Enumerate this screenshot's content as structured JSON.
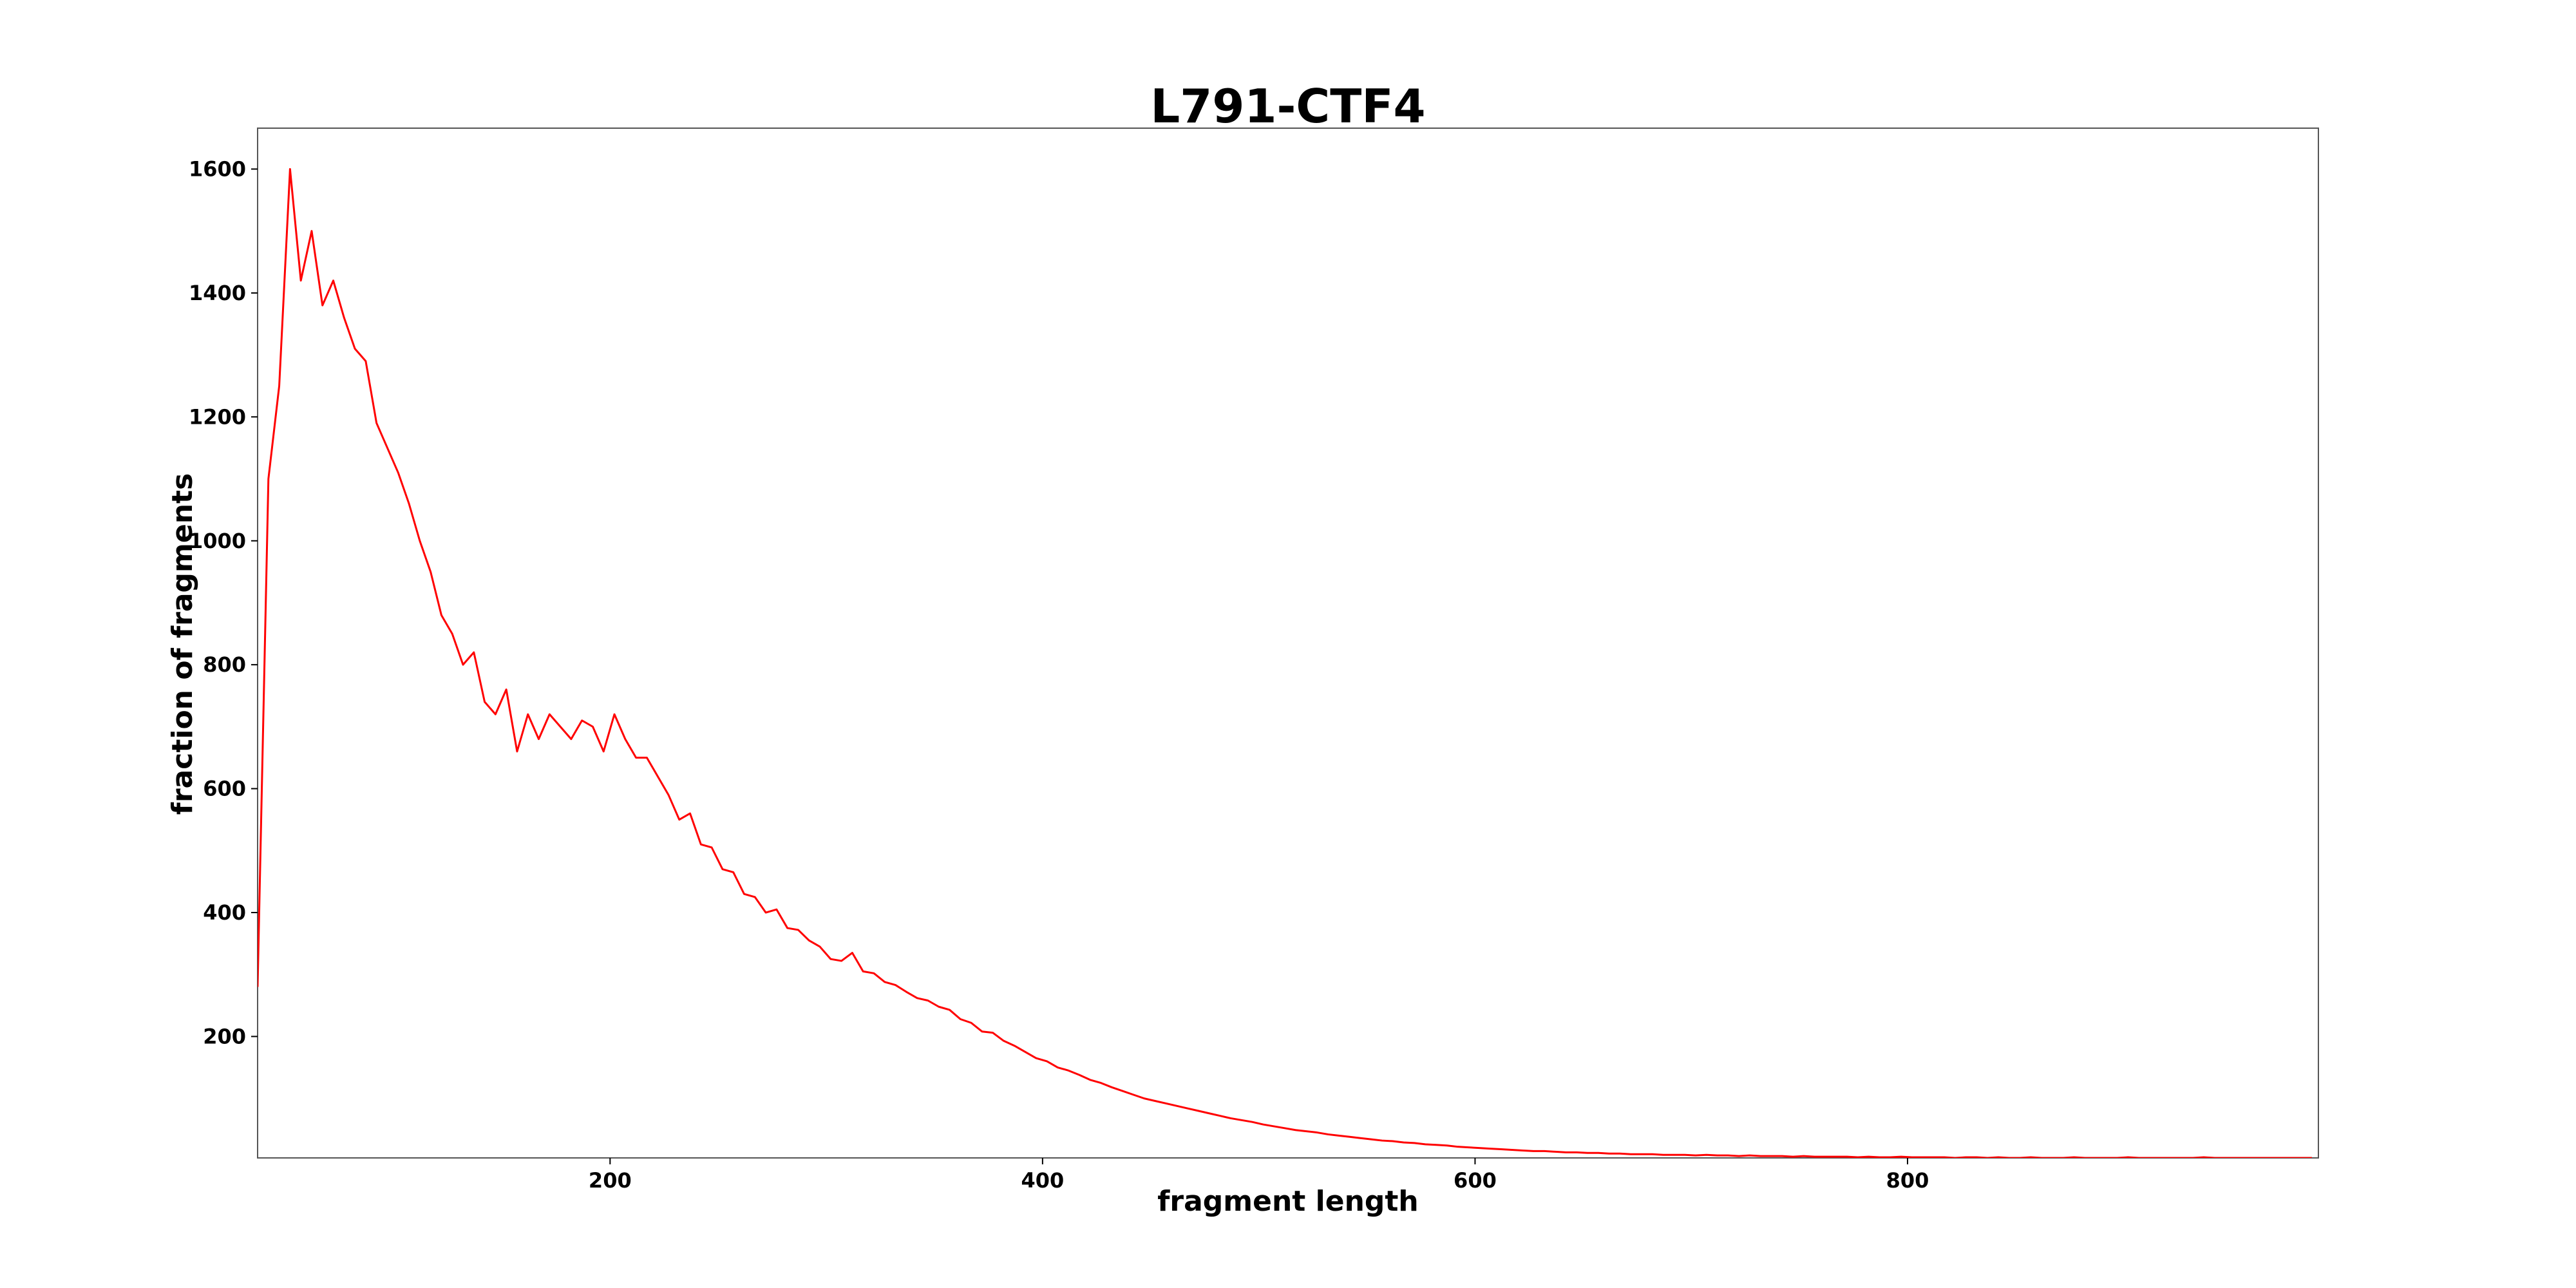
{
  "chart_data": {
    "type": "line",
    "title": "L791-CTF4",
    "x_label": "fragment length",
    "y_label": "fraction of fragments",
    "x": [
      37,
      42,
      47,
      52,
      57,
      62,
      67,
      72,
      77,
      82,
      87,
      92,
      97,
      102,
      107,
      112,
      117,
      122,
      127,
      132,
      137,
      142,
      147,
      152,
      157,
      162,
      167,
      172,
      177,
      182,
      187,
      192,
      197,
      202,
      207,
      212,
      217,
      222,
      227,
      232,
      237,
      242,
      247,
      252,
      257,
      262,
      267,
      272,
      277,
      282,
      287,
      292,
      297,
      302,
      307,
      312,
      317,
      322,
      327,
      332,
      337,
      342,
      347,
      352,
      357,
      362,
      367,
      372,
      377,
      382,
      387,
      392,
      397,
      402,
      407,
      412,
      417,
      422,
      427,
      432,
      437,
      442,
      447,
      452,
      457,
      462,
      467,
      472,
      477,
      482,
      487,
      492,
      497,
      502,
      507,
      512,
      517,
      522,
      527,
      532,
      537,
      542,
      547,
      552,
      557,
      562,
      567,
      572,
      577,
      582,
      587,
      592,
      597,
      602,
      607,
      612,
      617,
      622,
      627,
      632,
      637,
      642,
      647,
      652,
      657,
      662,
      667,
      672,
      677,
      682,
      687,
      692,
      697,
      702,
      707,
      712,
      717,
      722,
      727,
      732,
      737,
      742,
      747,
      752,
      757,
      762,
      767,
      772,
      777,
      782,
      787,
      792,
      797,
      802,
      807,
      812,
      817,
      822,
      827,
      832,
      837,
      842,
      847,
      852,
      857,
      862,
      867,
      872,
      877,
      882,
      887,
      892,
      897,
      902,
      907,
      912,
      917,
      922,
      927,
      932,
      937,
      942,
      947,
      952,
      957,
      962,
      967,
      972,
      977,
      982,
      987
    ],
    "series": [
      {
        "name": "L791-CTF4",
        "color": "#ff0000",
        "values": [
          280,
          1100,
          1250,
          1600,
          1420,
          1500,
          1380,
          1420,
          1360,
          1310,
          1290,
          1190,
          1150,
          1110,
          1060,
          1000,
          950,
          880,
          850,
          800,
          820,
          740,
          720,
          760,
          660,
          720,
          680,
          720,
          700,
          680,
          710,
          700,
          660,
          720,
          680,
          650,
          650,
          620,
          590,
          550,
          560,
          510,
          505,
          470,
          465,
          430,
          425,
          400,
          405,
          375,
          372,
          355,
          345,
          325,
          322,
          335,
          305,
          302,
          288,
          283,
          272,
          262,
          258,
          248,
          243,
          228,
          222,
          208,
          206,
          193,
          185,
          175,
          165,
          160,
          150,
          145,
          138,
          130,
          125,
          118,
          112,
          106,
          100,
          96,
          92,
          88,
          84,
          80,
          76,
          72,
          68,
          65,
          62,
          58,
          55,
          52,
          49,
          47,
          45,
          42,
          40,
          38,
          36,
          34,
          32,
          31,
          29,
          28,
          26,
          25,
          24,
          22,
          21,
          20,
          19,
          18,
          17,
          16,
          15,
          15,
          14,
          13,
          13,
          12,
          12,
          11,
          11,
          10,
          10,
          10,
          9,
          9,
          9,
          8,
          9,
          8,
          8,
          7,
          8,
          7,
          7,
          7,
          6,
          7,
          6,
          6,
          6,
          6,
          5,
          6,
          5,
          5,
          6,
          5,
          5,
          5,
          5,
          4,
          5,
          5,
          4,
          5,
          4,
          4,
          5,
          4,
          4,
          4,
          5,
          4,
          4,
          4,
          4,
          5,
          4,
          4,
          4,
          4,
          4,
          4,
          5,
          4,
          4,
          4,
          4,
          4,
          4,
          4,
          4,
          4,
          4
        ]
      }
    ],
    "xlim": [
      37,
      990
    ],
    "ylim": [
      4,
      1666
    ],
    "xticks": [
      200,
      400,
      600,
      800
    ],
    "yticks": [
      200,
      400,
      600,
      800,
      1000,
      1200,
      1400,
      1600
    ]
  }
}
